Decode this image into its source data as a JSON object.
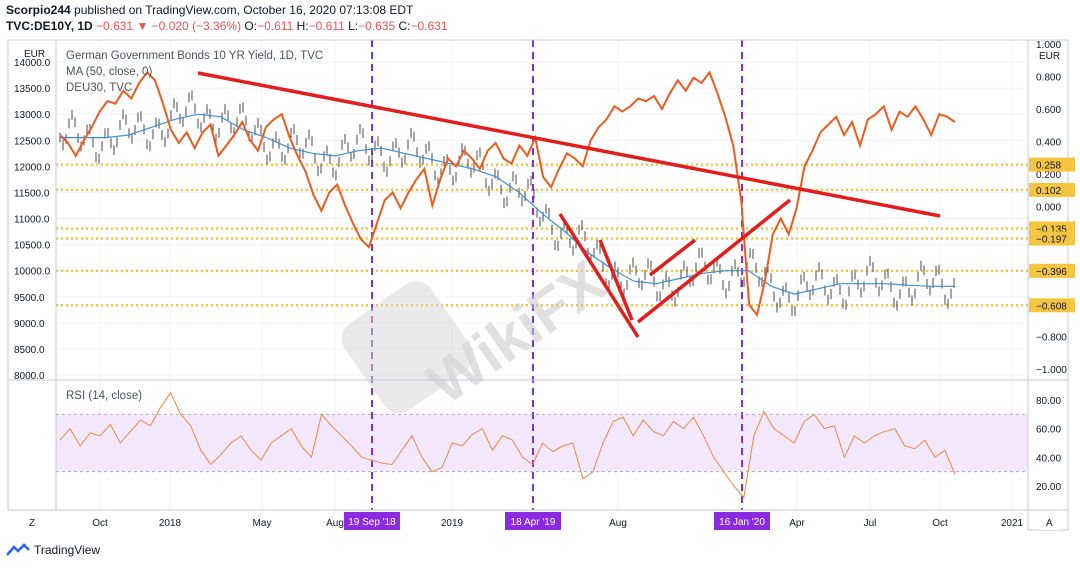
{
  "header": {
    "publisher": "Scorpio244",
    "published_text": "published on TradingView.com, October 16, 2020 07:13:08 EDT",
    "symbol": "TVC:DE10Y, 1D",
    "last": "−0.631",
    "change": "−0.020 (−3.36%)",
    "o_label": "O:",
    "o_value": "−0.611",
    "h_label": "H:",
    "h_value": "−0.611",
    "l_label": "L:",
    "l_value": "−0.635",
    "c_label": "C:",
    "c_value": "−0.631"
  },
  "legend": {
    "main": "German Government Bonds 10 YR Yield, 1D, TVC",
    "ma": "MA (50, close, 0)",
    "comp": "DEU30, TVC",
    "rsi": "RSI (14, close)"
  },
  "currency_left": "EUR",
  "currency_right": "EUR",
  "z_button": "Z",
  "a_button": "A",
  "footer_brand": "TradingView",
  "watermark": "WikiFX",
  "colors": {
    "yield_line": "#f05a1e",
    "bars": "#4a4a4a",
    "ma": "#3d8fd6",
    "trendline": "#e31c1c",
    "vline": "#8a2be2",
    "level": "#f5c542",
    "rsi_line": "#f0883e",
    "rsi_band": "#efe3ff"
  },
  "chart_data": {
    "type": "line",
    "title": "German Government Bonds 10 YR Yield, 1D, TVC",
    "x_ticks": [
      "Oct",
      "2018",
      "May",
      "Aug",
      "2019",
      "Aug",
      "Apr",
      "Jul",
      "Oct",
      "2021"
    ],
    "left_axis": {
      "unit": "EUR",
      "ticks": [
        "14000.0",
        "13500.0",
        "13000.0",
        "12500.0",
        "12000.0",
        "11500.0",
        "11000.0",
        "10500.0",
        "10000.0",
        "9500.0",
        "9000.0",
        "8500.0",
        "8000.0"
      ],
      "ylim": [
        8000,
        14000
      ]
    },
    "right_axis": {
      "unit": "EUR",
      "ticks": [
        "1.000",
        "0.800",
        "0.600",
        "0.400",
        "0.200",
        "0.000",
        "−0.800",
        "−1.000"
      ],
      "ylim": [
        -1.0,
        1.0
      ]
    },
    "rsi_axis": {
      "ticks": [
        "80.00",
        "60.00",
        "40.00",
        "20.00"
      ],
      "band": [
        30,
        70
      ]
    },
    "price_level_labels": [
      "0.258",
      "0.102",
      "−0.135",
      "−0.197",
      "−0.396",
      "−0.608"
    ],
    "price_levels": [
      0.258,
      0.102,
      -0.135,
      -0.197,
      -0.396,
      -0.608
    ],
    "vertical_markers": [
      {
        "label": "19 Sep '18"
      },
      {
        "label": "18 Apr '19"
      },
      {
        "label": "16 Jan '20"
      }
    ],
    "series": [
      {
        "name": "DEU30, TVC",
        "axis": "left",
        "values": [
          12600,
          12450,
          12200,
          12500,
          12750,
          13050,
          13250,
          13200,
          13450,
          13300,
          13600,
          13800,
          13650,
          13200,
          12700,
          12450,
          12650,
          12350,
          12650,
          12800,
          12200,
          12400,
          12600,
          12850,
          12500,
          12300,
          12750,
          12900,
          13000,
          12550,
          12200,
          11900,
          11450,
          11150,
          11500,
          11650,
          11250,
          10900,
          10600,
          10450,
          10900,
          11350,
          11500,
          11200,
          11500,
          11750,
          11950,
          11250,
          11750,
          12150,
          12000,
          12300,
          12150,
          11950,
          12300,
          12450,
          12150,
          12050,
          12400,
          12200,
          12550,
          11800,
          11600,
          11950,
          12250,
          12150,
          12000,
          12500,
          12750,
          12900,
          13150,
          13050,
          13150,
          13300,
          13250,
          13350,
          13100,
          13400,
          13650,
          13450,
          13700,
          13600,
          13800,
          13400,
          12950,
          12400,
          11350,
          9350,
          9150,
          9800,
          10700,
          11000,
          10700,
          11200,
          12000,
          12300,
          12650,
          12800,
          12950,
          12600,
          12850,
          12400,
          12900,
          13000,
          13150,
          12700,
          13050,
          12950,
          13150,
          12900,
          12600,
          13000,
          12950,
          12850
        ],
        "x_span_index": [
          0,
          113
        ]
      },
      {
        "name": "MA (50, close, 0)",
        "axis": "left",
        "values": [
          12550,
          12550,
          12550,
          12600,
          12750,
          12900,
          13000,
          12950,
          12700,
          12550,
          12350,
          12250,
          12200,
          12300,
          12350,
          12250,
          12150,
          12050,
          11950,
          11800,
          11500,
          11100,
          10750,
          10350,
          10050,
          9800,
          9750,
          9850,
          9950,
          10000,
          10000,
          9700,
          9550,
          9650,
          9750,
          9750,
          9750,
          9720,
          9700,
          9700
        ],
        "x_span_index": [
          0,
          113
        ]
      },
      {
        "name": "RSI (14, close)",
        "axis": "rsi",
        "values": [
          52,
          60,
          48,
          57,
          55,
          63,
          50,
          58,
          66,
          62,
          75,
          85,
          70,
          62,
          45,
          35,
          42,
          50,
          55,
          45,
          38,
          50,
          55,
          60,
          48,
          40,
          70,
          62,
          55,
          48,
          40,
          38,
          36,
          35,
          45,
          55,
          40,
          30,
          33,
          50,
          48,
          56,
          60,
          45,
          55,
          52,
          40,
          35,
          50,
          44,
          48,
          50,
          25,
          30,
          50,
          65,
          68,
          55,
          66,
          58,
          55,
          65,
          60,
          68,
          55,
          40,
          30,
          20,
          12,
          55,
          72,
          60,
          55,
          50,
          65,
          70,
          60,
          62,
          40,
          55,
          50,
          55,
          58,
          60,
          48,
          46,
          52,
          40,
          45,
          28
        ]
      }
    ],
    "grid": true
  }
}
